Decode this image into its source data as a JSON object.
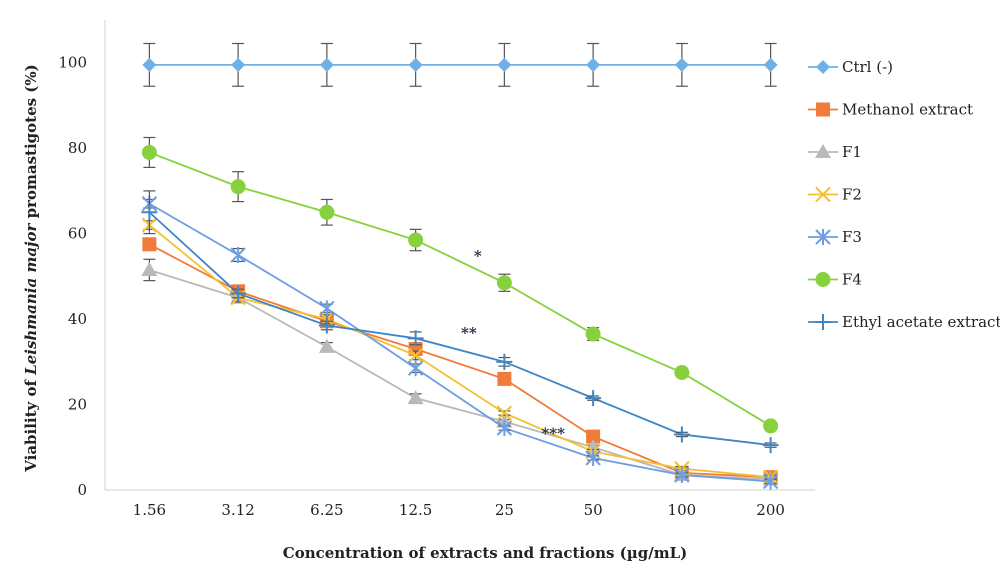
{
  "chart_data": {
    "type": "line",
    "categories": [
      "1.56",
      "3.12",
      "6.25",
      "12.5",
      "25",
      "50",
      "100",
      "200"
    ],
    "xlabel": "Concentration of extracts and fractions (µg/mL)",
    "ylabel_prefix": "Viability of ",
    "ylabel_italic": "Leishmania major",
    "ylabel_suffix": " promastigotes (%)",
    "ylim": [
      0,
      110
    ],
    "yticks": [
      "0",
      "20",
      "40",
      "60",
      "80",
      "100"
    ],
    "grid": false,
    "legend_position": "right",
    "series": [
      {
        "name": "Ctrl (-)",
        "color": "#6fb0e6",
        "marker": "diamond",
        "values": [
          99.5,
          99.5,
          99.5,
          99.5,
          99.5,
          99.5,
          99.5,
          99.5
        ],
        "errors": [
          5,
          5,
          5,
          5,
          5,
          5,
          5,
          5
        ]
      },
      {
        "name": "Methanol extract",
        "color": "#f07b3a",
        "marker": "square",
        "values": [
          57.5,
          46.5,
          39.5,
          33,
          26,
          12.5,
          4,
          3
        ],
        "errors": [
          1,
          1,
          1,
          1,
          0.5,
          0.5,
          0.5,
          0.5
        ]
      },
      {
        "name": "F1",
        "color": "#b9b9b9",
        "marker": "triangle",
        "values": [
          51.5,
          45,
          33.5,
          21.5,
          16,
          10,
          3.5,
          2.5
        ],
        "errors": [
          2.5,
          1,
          1,
          1,
          0.5,
          0.5,
          0.5,
          0.5
        ]
      },
      {
        "name": "F2",
        "color": "#f3c130",
        "marker": "x",
        "values": [
          62,
          45,
          40,
          31.5,
          18,
          9,
          5,
          3
        ],
        "errors": [
          1,
          1,
          1,
          1,
          0.5,
          0.5,
          0.5,
          0.5
        ]
      },
      {
        "name": "F3",
        "color": "#6d9de3",
        "marker": "asterisk",
        "values": [
          67,
          55,
          42.5,
          28.5,
          14.5,
          7.5,
          3.5,
          2
        ],
        "errors": [
          1,
          1.5,
          1,
          1,
          0.5,
          0.5,
          0.5,
          0.5
        ]
      },
      {
        "name": "F4",
        "color": "#86d13c",
        "marker": "circle",
        "values": [
          79,
          71,
          65,
          58.5,
          48.5,
          36.5,
          27.5,
          15
        ],
        "errors": [
          3.5,
          3.5,
          3,
          2.5,
          2,
          1.5,
          1,
          0.5
        ]
      },
      {
        "name": "Ethyl acetate extract",
        "color": "#3e86c6",
        "marker": "plus",
        "values": [
          65,
          46,
          38.5,
          35.5,
          30,
          21.5,
          13,
          10.5
        ],
        "errors": [
          5,
          1,
          1,
          1.5,
          1,
          0.5,
          0.5,
          0.5
        ]
      }
    ],
    "annotations": [
      {
        "text": "*",
        "x_pos": 3.7,
        "y": 55
      },
      {
        "text": "**",
        "x_pos": 3.6,
        "y": 37
      },
      {
        "text": "***",
        "x_pos": 4.55,
        "y": 13.5
      }
    ]
  }
}
